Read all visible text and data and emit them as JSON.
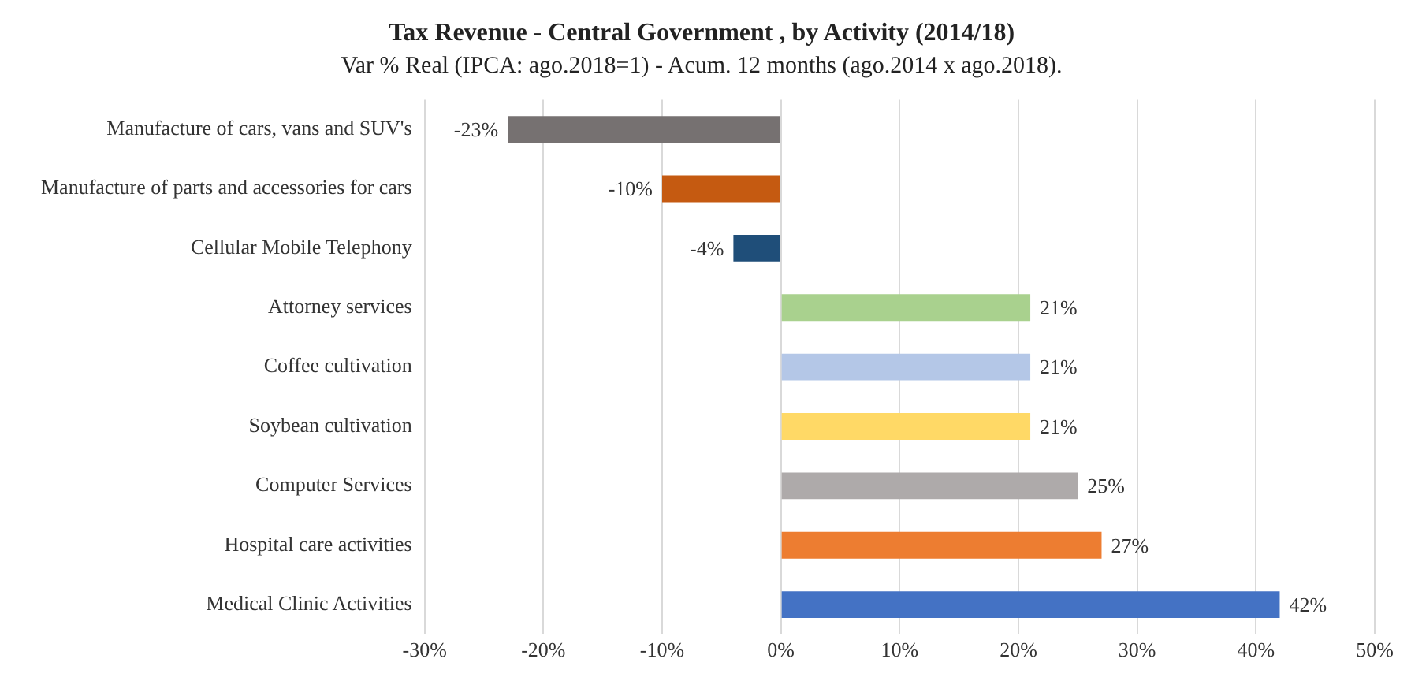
{
  "chart_data": {
    "type": "bar",
    "orientation": "horizontal",
    "title": "Tax Revenue - Central Government , by Activity (2014/18)",
    "subtitle": "Var % Real (IPCA: ago.2018=1) - Acum. 12 months (ago.2014 x ago.2018).",
    "categories": [
      "Manufacture of cars, vans and SUV's",
      "Manufacture of parts and accessories for cars",
      "Cellular Mobile Telephony",
      "Attorney services",
      "Coffee cultivation",
      "Soybean cultivation",
      "Computer Services",
      "Hospital care activities",
      "Medical Clinic Activities"
    ],
    "values": [
      -23,
      -10,
      -4,
      21,
      21,
      21,
      25,
      27,
      42
    ],
    "colors": [
      "#767171",
      "#c55a11",
      "#1f4e79",
      "#a9d18e",
      "#b4c7e7",
      "#ffd966",
      "#aeaaaa",
      "#ed7d31",
      "#4472c4"
    ],
    "value_labels": [
      "-23%",
      "-10%",
      "-4%",
      "21%",
      "21%",
      "21%",
      "25%",
      "27%",
      "42%"
    ],
    "xlim": [
      -30,
      50
    ],
    "xticks": [
      {
        "value": -30,
        "label": "-30%"
      },
      {
        "value": -20,
        "label": "-20%"
      },
      {
        "value": -10,
        "label": "-10%"
      },
      {
        "value": 0,
        "label": "0%"
      },
      {
        "value": 10,
        "label": "10%"
      },
      {
        "value": 20,
        "label": "20%"
      },
      {
        "value": 30,
        "label": "30%"
      },
      {
        "value": 40,
        "label": "40%"
      },
      {
        "value": 50,
        "label": "50%"
      }
    ],
    "grid": "x",
    "legend": false
  }
}
